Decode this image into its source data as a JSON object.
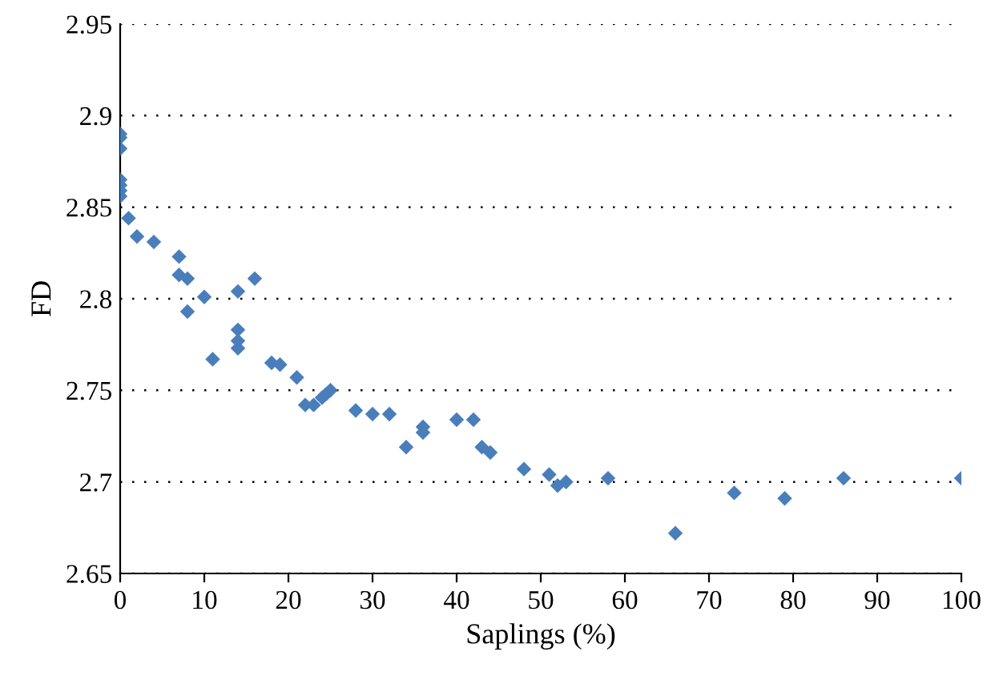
{
  "chart_data": {
    "type": "scatter",
    "xlabel": "Saplings (%)",
    "ylabel": "FD",
    "x": [
      0,
      0,
      0,
      0,
      0,
      0,
      0,
      1,
      2,
      4,
      7,
      7,
      8,
      8,
      10,
      11,
      14,
      14,
      14,
      14,
      16,
      18,
      19,
      21,
      22,
      23,
      24,
      24.5,
      25,
      28,
      30,
      32,
      34,
      36,
      36,
      40,
      42,
      43,
      44,
      48,
      51,
      52,
      53,
      58,
      66,
      73,
      79,
      86,
      100
    ],
    "series": [
      {
        "color": "#4a7ebb",
        "values": [
          2.89,
          2.888,
          2.882,
          2.865,
          2.862,
          2.859,
          2.856,
          2.844,
          2.834,
          2.831,
          2.823,
          2.813,
          2.811,
          2.793,
          2.801,
          2.767,
          2.804,
          2.783,
          2.777,
          2.773,
          2.811,
          2.765,
          2.764,
          2.757,
          2.742,
          2.742,
          2.746,
          2.748,
          2.75,
          2.739,
          2.737,
          2.737,
          2.719,
          2.73,
          2.727,
          2.734,
          2.734,
          2.719,
          2.716,
          2.707,
          2.704,
          2.698,
          2.7,
          2.702,
          2.672,
          2.694,
          2.691,
          2.702,
          2.702
        ]
      }
    ],
    "xlim": [
      0,
      100
    ],
    "xticks": [
      0,
      10,
      20,
      30,
      40,
      50,
      60,
      70,
      80,
      90,
      100
    ],
    "ylim": [
      2.65,
      2.95
    ],
    "yticks": [
      {
        "value": 2.65,
        "label": "2.65"
      },
      {
        "value": 2.7,
        "label": "2.7"
      },
      {
        "value": 2.75,
        "label": "2.75"
      },
      {
        "value": 2.8,
        "label": "2.8"
      },
      {
        "value": 2.85,
        "label": "2.85"
      },
      {
        "value": 2.9,
        "label": "2.9"
      },
      {
        "value": 2.95,
        "label": "2.95"
      }
    ],
    "grid": "y",
    "marker": "diamond",
    "legend": false
  }
}
